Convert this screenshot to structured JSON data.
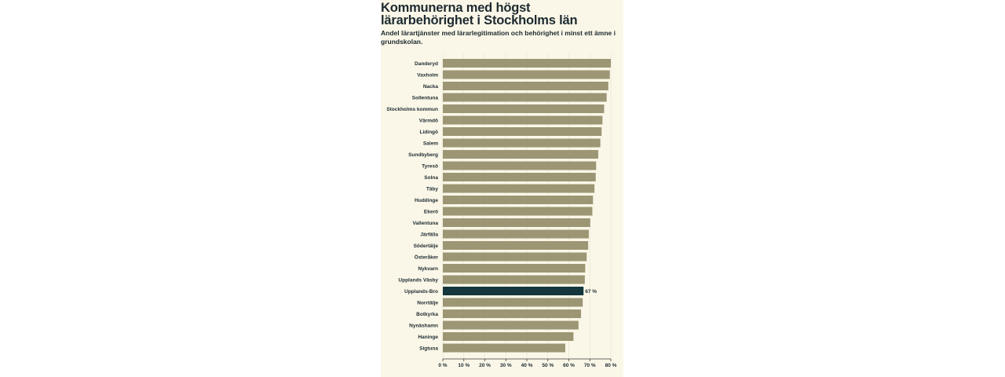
{
  "chart_data": {
    "type": "bar",
    "orientation": "horizontal",
    "title": "Kommunerna med högst lärarbehörighet i Stockholms län",
    "subtitle": "Andel lärartjänster med lärarlegitimation och behörighet i minst ett ämne i grundskolan.",
    "categories": [
      "Danderyd",
      "Vaxholm",
      "Nacka",
      "Sollentuna",
      "Stockholms kommun",
      "Värmdö",
      "Lidingö",
      "Salem",
      "Sundbyberg",
      "Tyresö",
      "Solna",
      "Täby",
      "Huddinge",
      "Ekerö",
      "Vallentuna",
      "Järfälla",
      "Södertälje",
      "Österåker",
      "Nykvarn",
      "Upplands Väsby",
      "Upplands-Bro",
      "Norrtälje",
      "Botkyrka",
      "Nynäshamn",
      "Haninge",
      "Sigtuna"
    ],
    "values": [
      80,
      79.5,
      78.8,
      78,
      76.8,
      76,
      75.6,
      75,
      74,
      73,
      72.8,
      72.2,
      71.5,
      71.2,
      70.2,
      69.5,
      69.2,
      68.5,
      67.8,
      67.6,
      67,
      66.6,
      65.8,
      64.6,
      62.2,
      58.3
    ],
    "highlight_index": 20,
    "highlight_label": "67 %",
    "xlim": [
      0,
      80
    ],
    "xticks": [
      0,
      10,
      20,
      30,
      40,
      50,
      60,
      70,
      80
    ],
    "xtick_labels": [
      "0 %",
      "10 %",
      "20 %",
      "30 %",
      "40 %",
      "50 %",
      "60 %",
      "70 %",
      "80 %"
    ],
    "grid": true,
    "colors": {
      "bar": "#9c9675",
      "highlight": "#14363d",
      "panel": "#faf7e8",
      "text": "#1d2a30",
      "grid": "#e7e2cd",
      "axis": "#3a3a3a"
    }
  }
}
